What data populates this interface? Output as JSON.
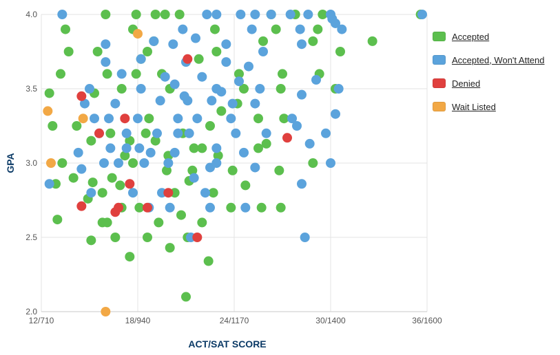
{
  "chart_data": {
    "type": "scatter",
    "xlabel": "ACT/SAT SCORE",
    "ylabel": "GPA",
    "xlim": [
      12,
      36
    ],
    "ylim": [
      2.0,
      4.0
    ],
    "xticks": [
      {
        "value": 12,
        "label": "12/710"
      },
      {
        "value": 18,
        "label": "18/940"
      },
      {
        "value": 24,
        "label": "24/1170"
      },
      {
        "value": 30,
        "label": "30/1400"
      },
      {
        "value": 36,
        "label": "36/1600"
      }
    ],
    "yticks": [
      {
        "value": 2.0,
        "label": "2.0"
      },
      {
        "value": 2.5,
        "label": "2.5"
      },
      {
        "value": 3.0,
        "label": "3.0"
      },
      {
        "value": 3.5,
        "label": "3.5"
      },
      {
        "value": 4.0,
        "label": "4.0"
      }
    ],
    "grid": true,
    "legend_position": "right",
    "series": [
      {
        "name": "Accepted",
        "color": "#5cbf4e",
        "points": [
          [
            16.0,
            4.0
          ],
          [
            17.9,
            4.0
          ],
          [
            19.1,
            4.0
          ],
          [
            19.7,
            4.0
          ],
          [
            20.6,
            4.0
          ],
          [
            26.3,
            4.0
          ],
          [
            27.8,
            4.0
          ],
          [
            29.5,
            4.0
          ],
          [
            35.6,
            4.0
          ],
          [
            13.5,
            3.9
          ],
          [
            17.7,
            3.9
          ],
          [
            22.8,
            3.9
          ],
          [
            26.6,
            3.9
          ],
          [
            29.2,
            3.9
          ],
          [
            25.8,
            3.82
          ],
          [
            28.9,
            3.82
          ],
          [
            32.6,
            3.82
          ],
          [
            19.0,
            3.82
          ],
          [
            13.7,
            3.75
          ],
          [
            15.5,
            3.75
          ],
          [
            18.6,
            3.75
          ],
          [
            22.9,
            3.75
          ],
          [
            30.6,
            3.75
          ],
          [
            13.2,
            3.6
          ],
          [
            16.1,
            3.6
          ],
          [
            17.9,
            3.6
          ],
          [
            24.3,
            3.6
          ],
          [
            27.0,
            3.6
          ],
          [
            29.3,
            3.6
          ],
          [
            12.5,
            3.47
          ],
          [
            15.3,
            3.47
          ],
          [
            17.0,
            3.5
          ],
          [
            20.0,
            3.5
          ],
          [
            24.6,
            3.5
          ],
          [
            26.9,
            3.5
          ],
          [
            30.3,
            3.5
          ],
          [
            12.7,
            3.25
          ],
          [
            14.2,
            3.25
          ],
          [
            18.7,
            3.3
          ],
          [
            22.5,
            3.25
          ],
          [
            25.5,
            3.3
          ],
          [
            27.1,
            3.3
          ],
          [
            15.1,
            3.15
          ],
          [
            16.3,
            3.2
          ],
          [
            17.5,
            3.15
          ],
          [
            19.1,
            3.15
          ],
          [
            22.0,
            3.1
          ],
          [
            25.5,
            3.1
          ],
          [
            26.0,
            3.13
          ],
          [
            13.3,
            3.0
          ],
          [
            14.0,
            2.9
          ],
          [
            15.2,
            2.87
          ],
          [
            16.4,
            2.9
          ],
          [
            17.2,
            3.05
          ],
          [
            19.8,
            2.95
          ],
          [
            21.4,
            2.95
          ],
          [
            23.9,
            2.95
          ],
          [
            26.8,
            2.95
          ],
          [
            28.9,
            3.0
          ],
          [
            12.9,
            2.86
          ],
          [
            14.9,
            2.76
          ],
          [
            15.8,
            2.8
          ],
          [
            16.9,
            2.85
          ],
          [
            20.3,
            2.8
          ],
          [
            22.7,
            2.8
          ],
          [
            24.7,
            2.85
          ],
          [
            13.0,
            2.62
          ],
          [
            15.8,
            2.6
          ],
          [
            16.1,
            2.6
          ],
          [
            17.0,
            2.7
          ],
          [
            18.1,
            2.7
          ],
          [
            19.3,
            2.6
          ],
          [
            20.7,
            2.65
          ],
          [
            22.0,
            2.6
          ],
          [
            23.8,
            2.7
          ],
          [
            25.7,
            2.7
          ],
          [
            26.9,
            2.7
          ],
          [
            15.1,
            2.48
          ],
          [
            16.6,
            2.5
          ],
          [
            18.6,
            2.5
          ],
          [
            21.1,
            2.5
          ],
          [
            17.5,
            2.37
          ],
          [
            20.0,
            2.43
          ],
          [
            22.4,
            2.34
          ],
          [
            21.0,
            2.1
          ],
          [
            18.2,
            3.7
          ],
          [
            19.5,
            3.6
          ],
          [
            21.8,
            3.7
          ],
          [
            23.2,
            3.35
          ],
          [
            24.2,
            3.4
          ],
          [
            20.8,
            3.2
          ],
          [
            21.5,
            3.1
          ],
          [
            18.5,
            3.2
          ],
          [
            17.7,
            3.0
          ],
          [
            19.9,
            3.05
          ],
          [
            21.2,
            2.88
          ],
          [
            23.0,
            3.05
          ]
        ]
      },
      {
        "name": "Accepted, Won't Attend",
        "color": "#5ba3dc",
        "points": [
          [
            13.3,
            4.0
          ],
          [
            22.3,
            4.0
          ],
          [
            22.9,
            4.0
          ],
          [
            24.4,
            4.0
          ],
          [
            25.3,
            4.0
          ],
          [
            26.3,
            4.0
          ],
          [
            27.5,
            4.0
          ],
          [
            28.6,
            4.0
          ],
          [
            30.0,
            4.0
          ],
          [
            35.7,
            4.0
          ],
          [
            20.8,
            3.9
          ],
          [
            25.1,
            3.9
          ],
          [
            28.1,
            3.9
          ],
          [
            30.1,
            3.97
          ],
          [
            30.3,
            3.94
          ],
          [
            30.7,
            3.9
          ],
          [
            16.0,
            3.8
          ],
          [
            19.0,
            3.82
          ],
          [
            20.2,
            3.8
          ],
          [
            21.6,
            3.84
          ],
          [
            23.5,
            3.8
          ],
          [
            25.8,
            3.75
          ],
          [
            28.2,
            3.8
          ],
          [
            16.0,
            3.68
          ],
          [
            18.2,
            3.7
          ],
          [
            21.0,
            3.68
          ],
          [
            23.5,
            3.68
          ],
          [
            24.9,
            3.65
          ],
          [
            15.0,
            3.5
          ],
          [
            18.2,
            3.5
          ],
          [
            20.3,
            3.53
          ],
          [
            22.9,
            3.5
          ],
          [
            25.6,
            3.5
          ],
          [
            29.1,
            3.56
          ],
          [
            30.5,
            3.5
          ],
          [
            14.7,
            3.4
          ],
          [
            16.6,
            3.4
          ],
          [
            19.4,
            3.42
          ],
          [
            21.1,
            3.42
          ],
          [
            22.6,
            3.42
          ],
          [
            23.9,
            3.4
          ],
          [
            25.3,
            3.4
          ],
          [
            28.2,
            3.46
          ],
          [
            15.3,
            3.3
          ],
          [
            16.2,
            3.3
          ],
          [
            18.0,
            3.3
          ],
          [
            20.5,
            3.3
          ],
          [
            21.7,
            3.3
          ],
          [
            23.8,
            3.3
          ],
          [
            27.6,
            3.3
          ],
          [
            30.3,
            3.33
          ],
          [
            15.6,
            3.2
          ],
          [
            17.3,
            3.2
          ],
          [
            19.2,
            3.2
          ],
          [
            20.5,
            3.2
          ],
          [
            21.2,
            3.2
          ],
          [
            24.1,
            3.2
          ],
          [
            26.0,
            3.2
          ],
          [
            27.9,
            3.25
          ],
          [
            29.7,
            3.2
          ],
          [
            14.3,
            3.07
          ],
          [
            16.3,
            3.1
          ],
          [
            17.3,
            3.1
          ],
          [
            18.1,
            3.1
          ],
          [
            18.8,
            3.07
          ],
          [
            20.3,
            3.07
          ],
          [
            22.9,
            3.1
          ],
          [
            24.6,
            3.07
          ],
          [
            28.7,
            3.13
          ],
          [
            12.5,
            2.86
          ],
          [
            14.5,
            2.96
          ],
          [
            15.9,
            3.0
          ],
          [
            16.8,
            3.0
          ],
          [
            18.4,
            3.0
          ],
          [
            19.9,
            3.0
          ],
          [
            22.5,
            2.97
          ],
          [
            22.9,
            3.0
          ],
          [
            25.3,
            2.97
          ],
          [
            30.0,
            3.0
          ],
          [
            15.1,
            2.8
          ],
          [
            17.7,
            2.8
          ],
          [
            19.5,
            2.8
          ],
          [
            21.5,
            2.9
          ],
          [
            22.2,
            2.8
          ],
          [
            28.2,
            2.86
          ],
          [
            18.7,
            2.7
          ],
          [
            20.0,
            2.7
          ],
          [
            22.5,
            2.7
          ],
          [
            24.7,
            2.7
          ],
          [
            21.3,
            2.5
          ],
          [
            28.4,
            2.5
          ],
          [
            17.0,
            3.6
          ],
          [
            19.7,
            3.58
          ],
          [
            22.0,
            3.58
          ],
          [
            24.3,
            3.55
          ],
          [
            20.9,
            3.45
          ],
          [
            23.2,
            3.48
          ]
        ]
      },
      {
        "name": "Denied",
        "color": "#e0403e",
        "points": [
          [
            14.5,
            3.45
          ],
          [
            21.1,
            3.7
          ],
          [
            15.6,
            3.2
          ],
          [
            27.3,
            3.17
          ],
          [
            19.9,
            2.8
          ],
          [
            16.6,
            2.67
          ],
          [
            16.8,
            2.7
          ],
          [
            17.5,
            2.86
          ],
          [
            14.5,
            2.71
          ],
          [
            21.7,
            2.5
          ],
          [
            18.6,
            2.7
          ],
          [
            17.2,
            3.3
          ]
        ]
      },
      {
        "name": "Wait Listed",
        "color": "#f2a845",
        "points": [
          [
            12.4,
            3.35
          ],
          [
            12.6,
            3.0
          ],
          [
            18.0,
            3.87
          ],
          [
            14.6,
            3.3
          ],
          [
            16.0,
            2.0
          ]
        ]
      }
    ]
  }
}
